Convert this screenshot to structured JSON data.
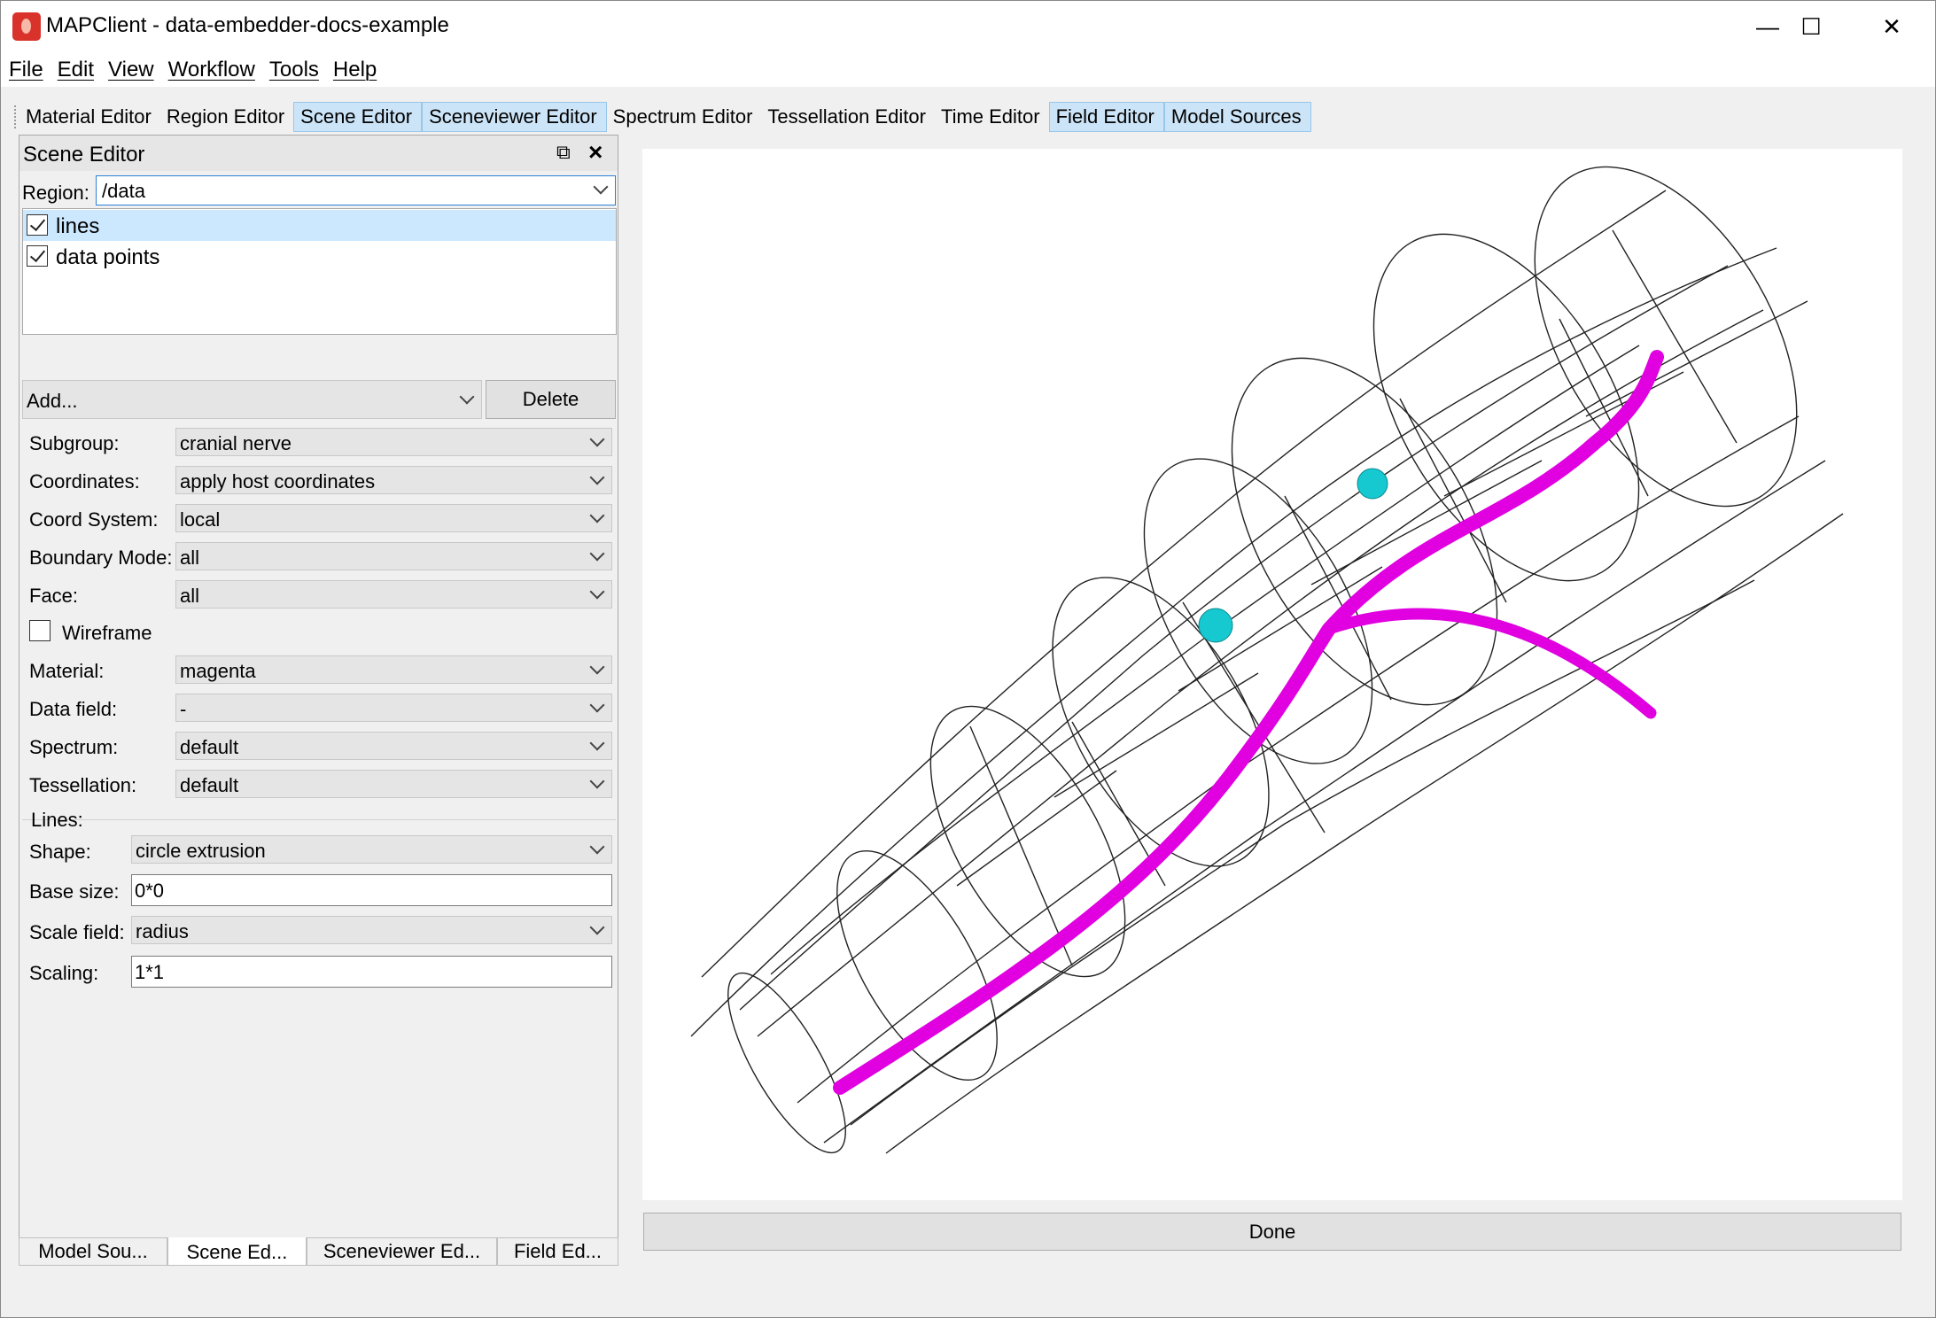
{
  "window": {
    "title": "MAPClient - data-embedder-docs-example"
  },
  "menu": [
    "File",
    "Edit",
    "View",
    "Workflow",
    "Tools",
    "Help"
  ],
  "toolbar": [
    {
      "label": "Material Editor",
      "active": false
    },
    {
      "label": "Region Editor",
      "active": false
    },
    {
      "label": "Scene Editor",
      "active": true
    },
    {
      "label": "Sceneviewer Editor",
      "active": true
    },
    {
      "label": "Spectrum Editor",
      "active": false
    },
    {
      "label": "Tessellation Editor",
      "active": false
    },
    {
      "label": "Time Editor",
      "active": false
    },
    {
      "label": "Field Editor",
      "active": true
    },
    {
      "label": "Model Sources",
      "active": true
    }
  ],
  "scene_editor": {
    "title": "Scene Editor",
    "region_label": "Region:",
    "region_value": "/data",
    "graphics": [
      {
        "label": "lines",
        "checked": true,
        "selected": true
      },
      {
        "label": "data points",
        "checked": true,
        "selected": false
      }
    ],
    "add_label": "Add...",
    "delete_label": "Delete",
    "fields": [
      {
        "label": "Subgroup:",
        "value": "cranial nerve"
      },
      {
        "label": "Coordinates:",
        "value": "apply host coordinates"
      },
      {
        "label": "Coord System:",
        "value": "local"
      },
      {
        "label": "Boundary Mode:",
        "value": "all"
      },
      {
        "label": "Face:",
        "value": "all"
      }
    ],
    "wireframe_label": "Wireframe",
    "wireframe_checked": false,
    "fields2": [
      {
        "label": "Material:",
        "value": "magenta"
      },
      {
        "label": "Data field:",
        "value": "-"
      },
      {
        "label": "Spectrum:",
        "value": "default"
      },
      {
        "label": "Tessellation:",
        "value": "default"
      }
    ],
    "lines_group_label": "Lines:",
    "shape_label": "Shape:",
    "shape_value": "circle extrusion",
    "base_size_label": "Base size:",
    "base_size_value": "0*0",
    "scale_field_label": "Scale field:",
    "scale_field_value": "radius",
    "scaling_label": "Scaling:",
    "scaling_value": "1*1"
  },
  "dock_tabs": [
    {
      "label": "Model Sou...",
      "active": false
    },
    {
      "label": "Scene Ed...",
      "active": true
    },
    {
      "label": "Sceneviewer Ed...",
      "active": false
    },
    {
      "label": "Field Ed...",
      "active": false
    }
  ],
  "viewer": {
    "nerve_color": "#e000e0",
    "data_point_color": "#16c8d0",
    "mesh_line_color": "#222222"
  },
  "done_label": "Done"
}
